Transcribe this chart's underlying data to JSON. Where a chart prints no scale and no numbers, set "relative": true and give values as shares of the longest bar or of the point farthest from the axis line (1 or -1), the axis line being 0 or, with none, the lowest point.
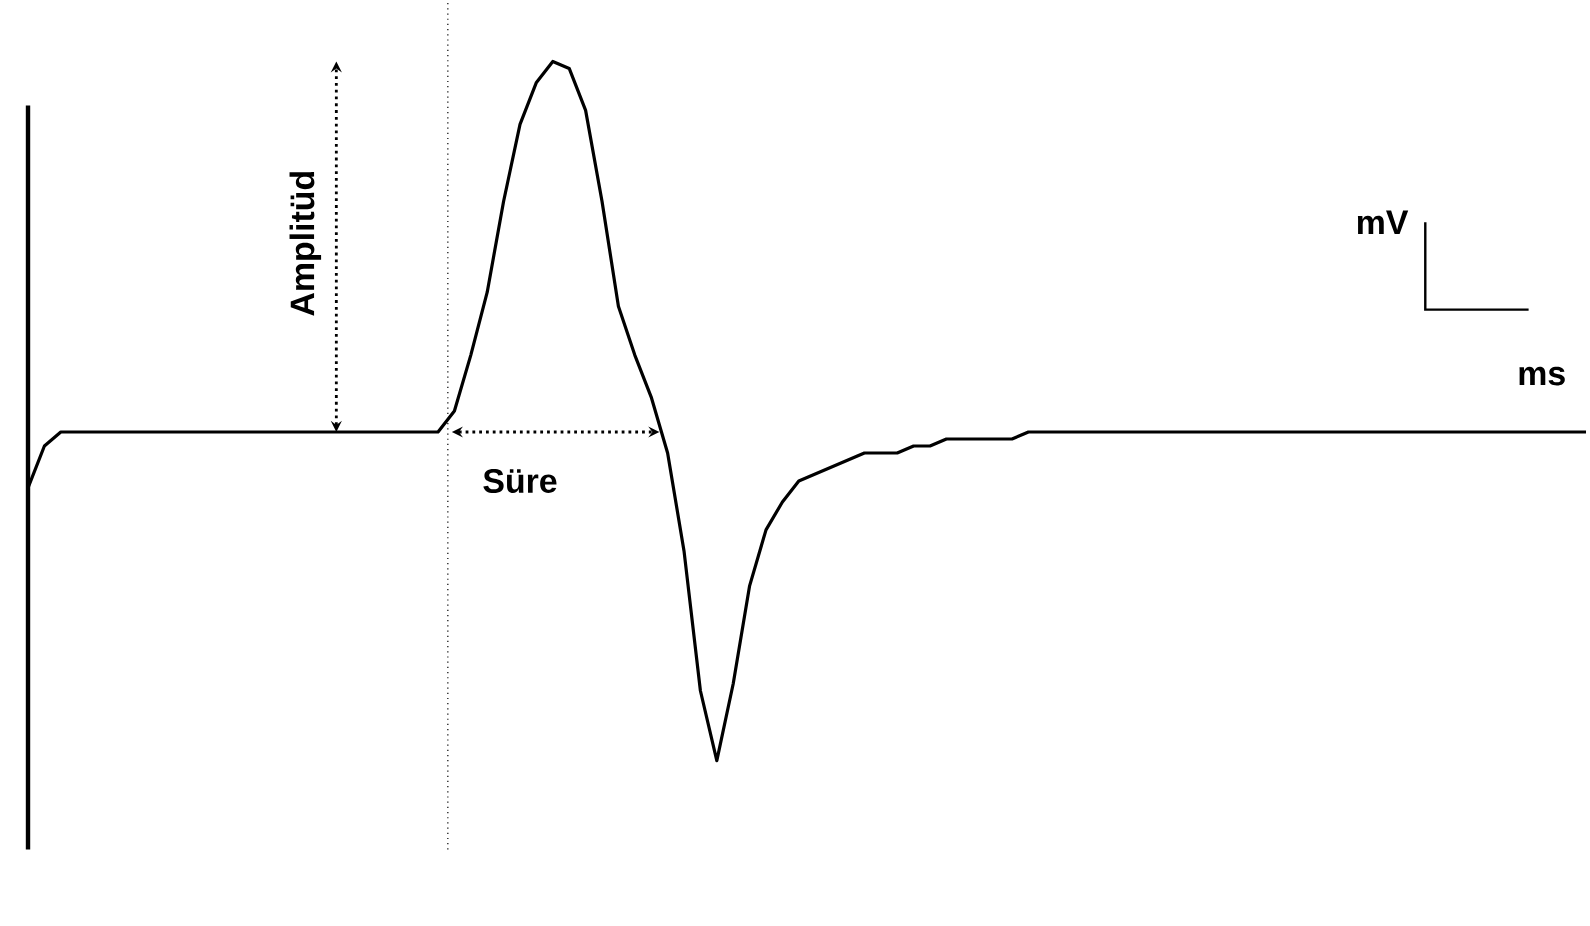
{
  "chart_data": {
    "type": "line",
    "relative": true,
    "line_style": "solid",
    "categories": [
      null,
      null,
      null,
      null,
      null,
      null,
      null,
      null,
      null,
      null,
      null,
      null,
      null,
      null,
      null,
      null,
      null,
      null,
      null,
      null,
      null,
      null,
      null,
      null,
      null,
      null,
      null,
      null,
      null,
      null,
      null,
      null,
      null,
      null,
      null,
      null,
      null,
      null,
      null,
      null,
      null,
      null,
      null,
      null,
      null,
      null,
      null,
      null,
      null,
      null,
      null,
      null,
      null,
      null,
      null,
      null,
      null,
      null,
      null,
      null,
      null,
      null,
      null,
      null,
      null,
      null,
      null,
      null,
      null,
      null,
      null,
      null,
      null,
      null,
      null,
      null,
      null,
      null,
      null,
      null,
      null,
      null,
      null,
      null,
      null,
      null,
      null,
      null,
      null,
      null,
      null,
      null,
      null,
      null,
      null,
      null
    ],
    "series": [
      {
        "color": "#000000",
        "values": [
          0.39,
          0.45,
          0.47,
          0.47,
          0.47,
          0.47,
          0.47,
          0.47,
          0.47,
          0.47,
          0.47,
          0.47,
          0.47,
          0.47,
          0.47,
          0.47,
          0.47,
          0.47,
          0.47,
          0.47,
          0.47,
          0.47,
          0.47,
          0.47,
          0.47,
          0.47,
          0.5,
          0.58,
          0.67,
          0.8,
          0.91,
          0.97,
          1,
          0.99,
          0.93,
          0.8,
          0.65,
          0.58,
          0.52,
          0.44,
          0.3,
          0.1,
          0,
          0.11,
          0.25,
          0.33,
          0.37,
          0.4,
          0.41,
          0.42,
          0.43,
          0.44,
          0.44,
          0.44,
          0.45,
          0.45,
          0.46,
          0.46,
          0.46,
          0.46,
          0.46,
          0.47,
          0.47,
          0.47,
          0.47,
          0.47,
          0.47,
          0.47,
          0.47,
          0.47,
          0.47,
          0.47,
          0.47,
          0.47,
          0.47,
          0.47,
          0.47,
          0.47,
          0.47,
          0.47,
          0.47,
          0.47,
          0.47,
          0.47,
          0.47,
          0.47,
          0.47,
          0.47,
          0.47,
          0.47,
          0.47,
          0.47,
          0.47,
          0.47,
          0.47,
          0.47
        ]
      }
    ],
    "annotations": [
      "Amplitüd",
      "Süre",
      "mV",
      "ms"
    ]
  }
}
